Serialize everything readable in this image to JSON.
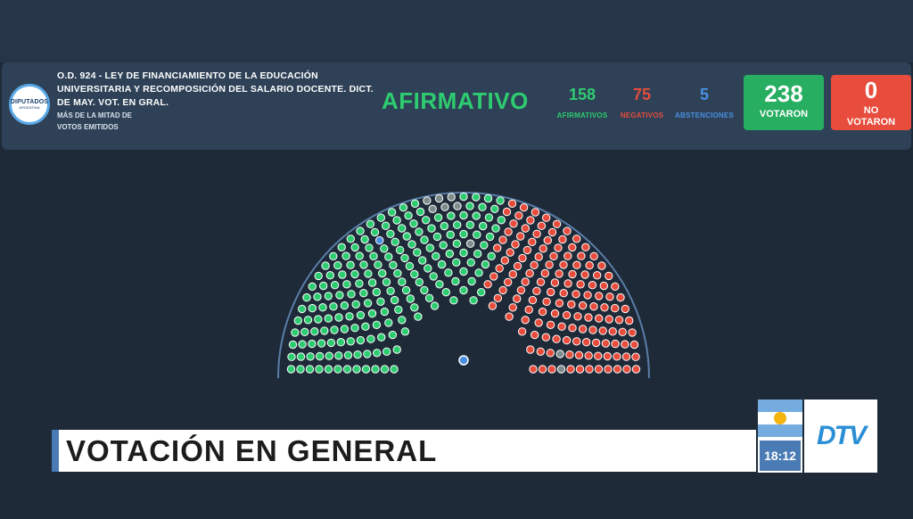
{
  "header": {
    "logo_text": "DIPUTADOS",
    "logo_sub": "ARGENTINA",
    "title": "O.D. 924 - LEY DE FINANCIAMIENTO DE LA EDUCACIÓN UNIVERSITARIA Y RECOMPOSICIÓN DEL SALARIO DOCENTE. DICT. DE MAY. VOT. EN GRAL.",
    "majority_rule": "MÁS DE LA MITAD DE VOTOS EMITIDOS",
    "result": "AFIRMATIVO"
  },
  "tally": {
    "affirmative": {
      "count": "158",
      "label": "AFIRMATIVOS",
      "color": "#2ecc71"
    },
    "negative": {
      "count": "75",
      "label": "NEGATIVOS",
      "color": "#e74c3c"
    },
    "abstention": {
      "count": "5",
      "label": "ABSTENCIONES",
      "color": "#4a90e2"
    },
    "voted": {
      "count": "238",
      "label": "VOTARON",
      "color": "#27ae60"
    },
    "not_voted": {
      "count": "0",
      "label": "NO VOTARON",
      "color": "#e74c3c"
    }
  },
  "chamber": {
    "seat_colors": {
      "affirmative": "#2ecc71",
      "negative": "#e74c3c",
      "abstention": "#4a90e2",
      "absent": "#7f8c8d"
    },
    "president_color": "#4a90e2"
  },
  "lower_third": {
    "text": "VOTACIÓN EN GENERAL"
  },
  "broadcast": {
    "time": "18:12",
    "channel": "DTV"
  }
}
